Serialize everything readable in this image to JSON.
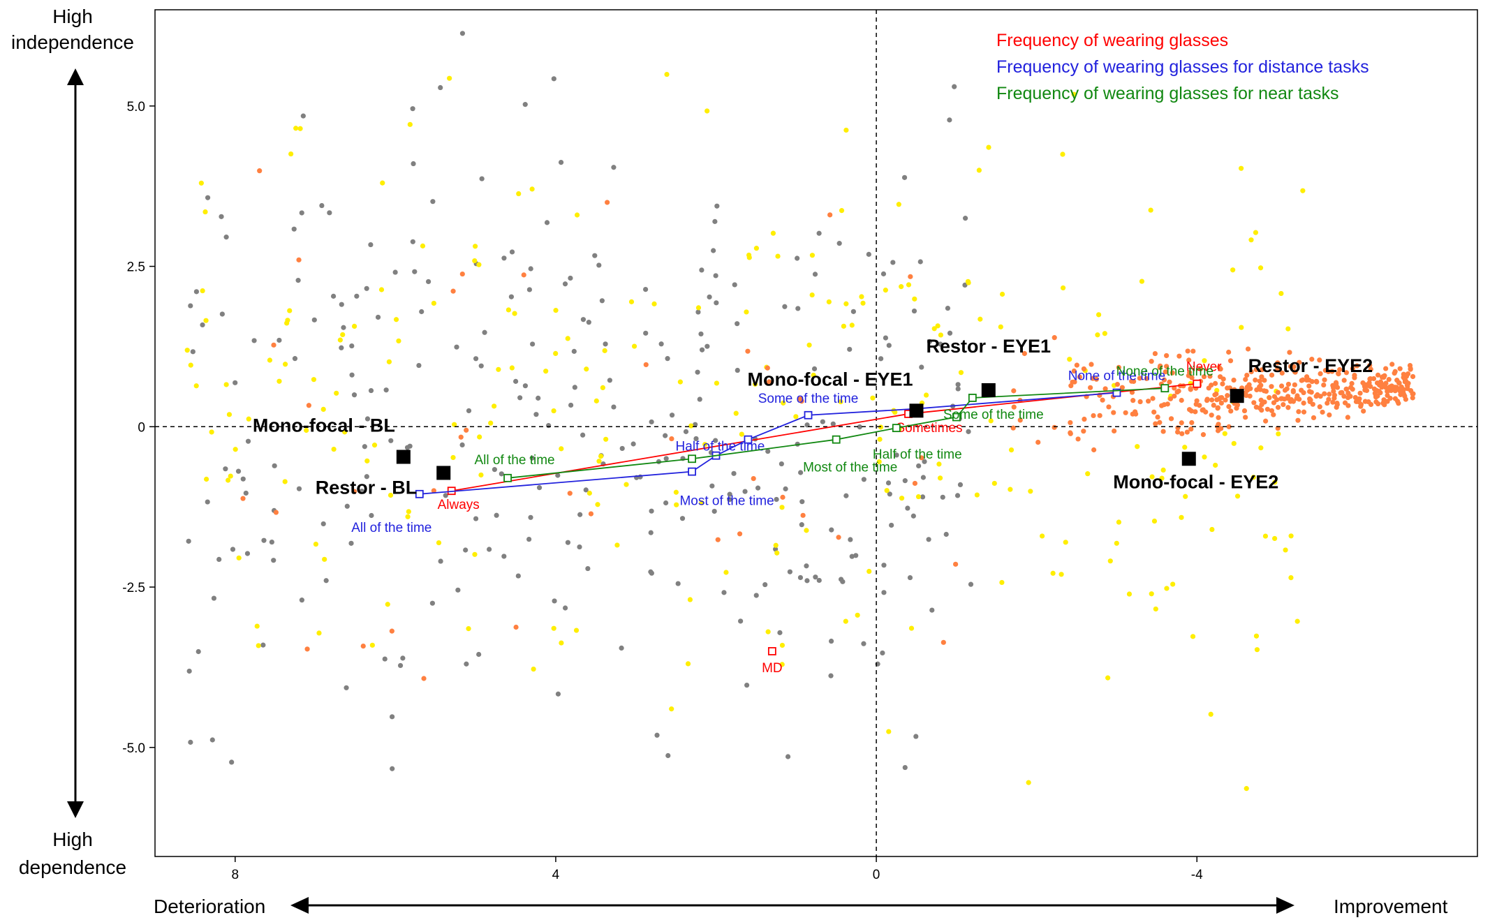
{
  "chart_data": {
    "type": "scatter",
    "xlim": [
      9.0,
      -7.5
    ],
    "ylim": [
      -6.7,
      6.5
    ],
    "x_reversed": true,
    "x_ticks": [
      8,
      4,
      0,
      -4
    ],
    "x_tick_labels": [
      "8",
      "4",
      "0",
      "-4"
    ],
    "y_ticks": [
      5.0,
      2.5,
      0,
      -2.5,
      -5.0
    ],
    "y_tick_labels": [
      "5.0",
      "2.5",
      "0",
      "-2.5",
      "-5.0"
    ],
    "axis_labels": {
      "y_top_1": "High",
      "y_top_2": "independence",
      "y_bottom_1": "High",
      "y_bottom_2": "dependence",
      "x_left": "Deterioration",
      "x_right": "Improvement"
    },
    "legend": [
      {
        "label": "Frequency of wearing glasses",
        "color": "#ff0000"
      },
      {
        "label": "Frequency of wearing glasses for distance tasks",
        "color": "#2222dd"
      },
      {
        "label": "Frequency of wearing glasses for near tasks",
        "color": "#118811"
      }
    ],
    "series": [
      {
        "color": "#ff0000",
        "points": [
          {
            "label": "Always",
            "x": 5.3,
            "y": -1.0
          },
          {
            "label": "Sometimes",
            "x": -0.4,
            "y": 0.2
          },
          {
            "label": "Never",
            "x": -4.0,
            "y": 0.67
          }
        ]
      },
      {
        "color": "#2222dd",
        "points": [
          {
            "label": "All of the time",
            "x": 5.7,
            "y": -1.05
          },
          {
            "label": "Most of the time",
            "x": 2.3,
            "y": -0.7
          },
          {
            "label": "",
            "x": 2.0,
            "y": -0.45
          },
          {
            "label": "Half of the time",
            "x": 1.6,
            "y": -0.2
          },
          {
            "label": "Some of the time",
            "x": 0.85,
            "y": 0.18
          },
          {
            "label": "",
            "x": -0.5,
            "y": 0.28
          },
          {
            "label": "None of the time",
            "x": -3.0,
            "y": 0.53
          }
        ]
      },
      {
        "color": "#118811",
        "points": [
          {
            "label": "All of the time",
            "x": 4.6,
            "y": -0.8
          },
          {
            "label": "",
            "x": 2.3,
            "y": -0.5
          },
          {
            "label": "Most of the time",
            "x": 0.5,
            "y": -0.2
          },
          {
            "label": "Half of the time",
            "x": -0.25,
            "y": -0.02
          },
          {
            "label": "",
            "x": -1.0,
            "y": 0.15
          },
          {
            "label": "Some of the time",
            "x": -1.2,
            "y": 0.45
          },
          {
            "label": "None of the time",
            "x": -3.6,
            "y": 0.6
          }
        ]
      }
    ],
    "groups": [
      {
        "label": "Mono-focal - BL",
        "x": 5.9,
        "y": -0.47
      },
      {
        "label": "Restor - BL",
        "x": 5.4,
        "y": -0.72
      },
      {
        "label": "Mono-focal - EYE1",
        "x": -0.5,
        "y": 0.25
      },
      {
        "label": "Restor - EYE1",
        "x": -1.4,
        "y": 0.57
      },
      {
        "label": "Restor - EYE2",
        "x": -4.5,
        "y": 0.48
      },
      {
        "label": "Mono-focal - EYE2",
        "x": -3.9,
        "y": -0.5
      }
    ],
    "annotations": [
      {
        "label": "MD",
        "x": 1.3,
        "y": -3.5,
        "color": "#ff0000"
      }
    ],
    "background_points": {
      "colors": [
        "#808080",
        "#ffee00",
        "#ff8040"
      ],
      "note": "Hundreds of individual respondent dots; grey concentrated on the left, yellow scattered, orange dense on the right."
    }
  }
}
